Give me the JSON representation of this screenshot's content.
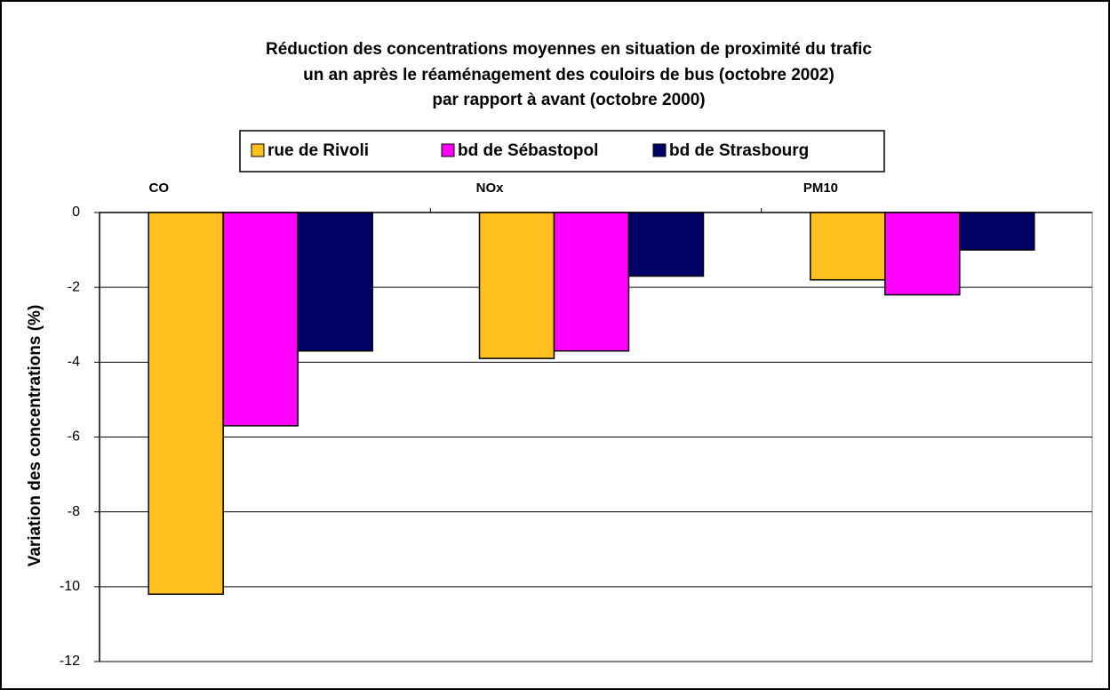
{
  "chart_data": {
    "type": "bar",
    "title": [
      "Réduction des concentrations moyennes en situation de proximité du trafic",
      "un an après le réaménagement des couloirs de bus (octobre 2002)",
      "par rapport à avant (octobre 2000)"
    ],
    "y_label": "Variation des concentrations (%)",
    "categories": [
      "CO",
      "NOx",
      "PM10"
    ],
    "series": [
      {
        "name": "rue de Rivoli",
        "color": "#ffc020",
        "values": [
          -10.2,
          -3.9,
          -1.8
        ]
      },
      {
        "name": "bd de Sébastopol",
        "color": "#ff00ff",
        "values": [
          -5.7,
          -3.7,
          -2.2
        ]
      },
      {
        "name": "bd de Strasbourg",
        "color": "#000066",
        "values": [
          -3.7,
          -1.7,
          -1.0
        ]
      }
    ],
    "ylim": [
      -12,
      0
    ],
    "yticks": [
      0,
      -2,
      -4,
      -6,
      -8,
      -10,
      -12
    ],
    "grid": true,
    "legend": "top"
  }
}
